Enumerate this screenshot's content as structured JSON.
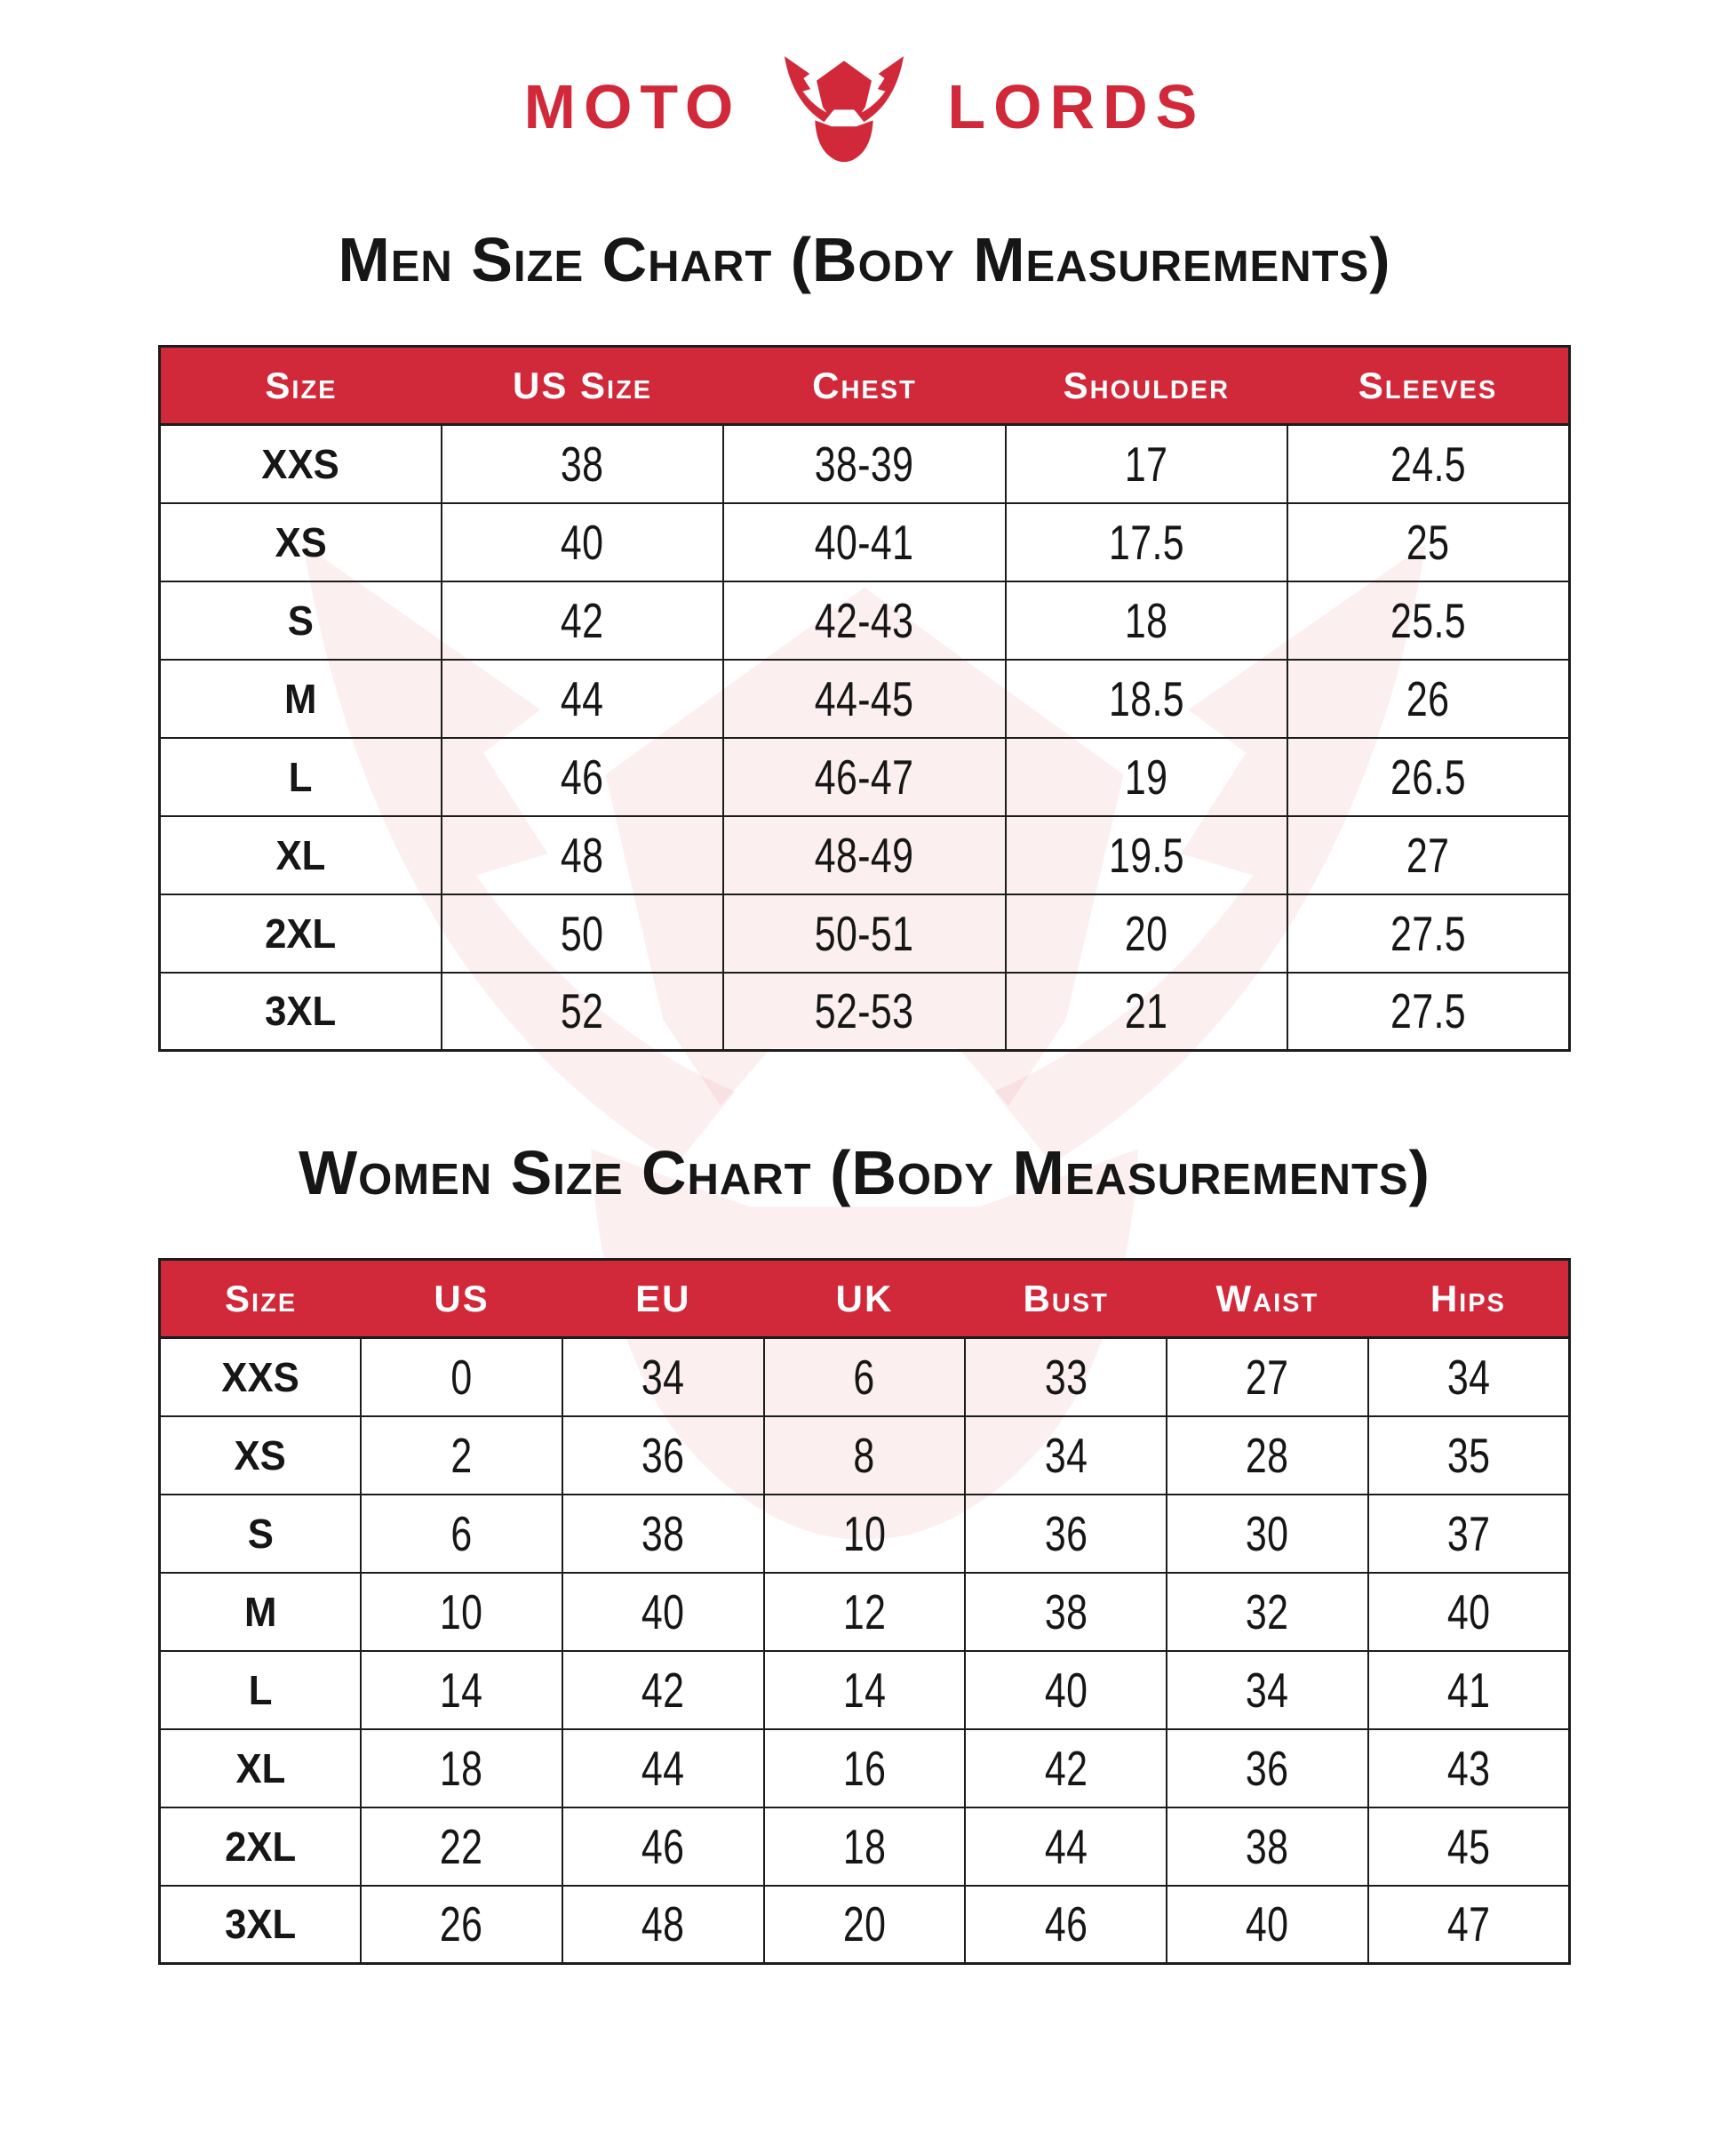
{
  "brand": {
    "name_left": "MOTO",
    "name_right": "LORDS",
    "icon": "horned-helmet-icon"
  },
  "colors": {
    "brand_red": "#d1293a",
    "header_text": "#ffffff",
    "body_text": "#161616",
    "border_dark": "#1c1c1c"
  },
  "men_chart": {
    "title": "Men Size Chart (Body Measurements)",
    "columns": [
      "Size",
      "US Size",
      "Chest",
      "Shoulder",
      "Sleeves"
    ],
    "rows": [
      [
        "XXS",
        "38",
        "38-39",
        "17",
        "24.5"
      ],
      [
        "XS",
        "40",
        "40-41",
        "17.5",
        "25"
      ],
      [
        "S",
        "42",
        "42-43",
        "18",
        "25.5"
      ],
      [
        "M",
        "44",
        "44-45",
        "18.5",
        "26"
      ],
      [
        "L",
        "46",
        "46-47",
        "19",
        "26.5"
      ],
      [
        "XL",
        "48",
        "48-49",
        "19.5",
        "27"
      ],
      [
        "2XL",
        "50",
        "50-51",
        "20",
        "27.5"
      ],
      [
        "3XL",
        "52",
        "52-53",
        "21",
        "27.5"
      ]
    ]
  },
  "women_chart": {
    "title": "Women Size Chart (Body Measurements)",
    "columns": [
      "Size",
      "US",
      "EU",
      "UK",
      "Bust",
      "Waist",
      "Hips"
    ],
    "rows": [
      [
        "XXS",
        "0",
        "34",
        "6",
        "33",
        "27",
        "34"
      ],
      [
        "XS",
        "2",
        "36",
        "8",
        "34",
        "28",
        "35"
      ],
      [
        "S",
        "6",
        "38",
        "10",
        "36",
        "30",
        "37"
      ],
      [
        "M",
        "10",
        "40",
        "12",
        "38",
        "32",
        "40"
      ],
      [
        "L",
        "14",
        "42",
        "14",
        "40",
        "34",
        "41"
      ],
      [
        "XL",
        "18",
        "44",
        "16",
        "42",
        "36",
        "43"
      ],
      [
        "2XL",
        "22",
        "46",
        "18",
        "44",
        "38",
        "45"
      ],
      [
        "3XL",
        "26",
        "48",
        "20",
        "46",
        "40",
        "47"
      ]
    ]
  }
}
